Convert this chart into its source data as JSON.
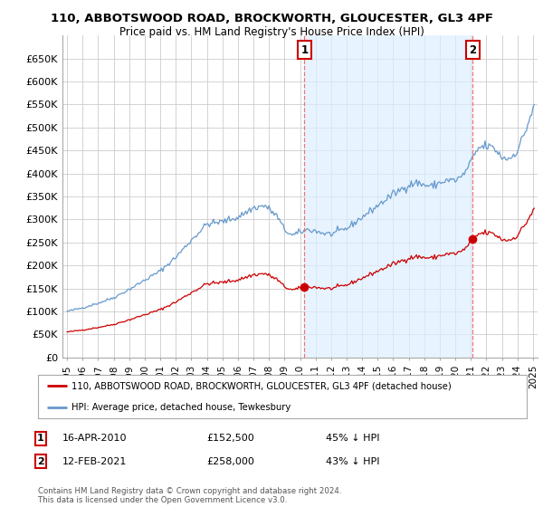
{
  "title": "110, ABBOTSWOOD ROAD, BROCKWORTH, GLOUCESTER, GL3 4PF",
  "subtitle": "Price paid vs. HM Land Registry's House Price Index (HPI)",
  "legend_label_red": "110, ABBOTSWOOD ROAD, BROCKWORTH, GLOUCESTER, GL3 4PF (detached house)",
  "legend_label_blue": "HPI: Average price, detached house, Tewkesbury",
  "annotation1_date": "16-APR-2010",
  "annotation1_price": "£152,500",
  "annotation1_pct": "45% ↓ HPI",
  "annotation2_date": "12-FEB-2021",
  "annotation2_price": "£258,000",
  "annotation2_pct": "43% ↓ HPI",
  "footer": "Contains HM Land Registry data © Crown copyright and database right 2024.\nThis data is licensed under the Open Government Licence v3.0.",
  "red_color": "#cc0000",
  "blue_color": "#6699cc",
  "blue_fill_color": "#ddeeff",
  "annotation_vline_color": "#ee6666",
  "grid_color": "#cccccc",
  "background_color": "#ffffff",
  "ylim": [
    0,
    700000
  ],
  "yticks": [
    0,
    50000,
    100000,
    150000,
    200000,
    250000,
    300000,
    350000,
    400000,
    450000,
    500000,
    550000,
    600000,
    650000
  ],
  "ytick_labels": [
    "£0",
    "£50K",
    "£100K",
    "£150K",
    "£200K",
    "£250K",
    "£300K",
    "£350K",
    "£400K",
    "£450K",
    "£500K",
    "£550K",
    "£600K",
    "£650K"
  ],
  "sale1_year": 2010.29,
  "sale1_price": 152500,
  "sale2_year": 2021.12,
  "sale2_price": 258000,
  "xtick_years": [
    1995,
    1996,
    1997,
    1998,
    1999,
    2000,
    2001,
    2002,
    2003,
    2004,
    2005,
    2006,
    2007,
    2008,
    2009,
    2010,
    2011,
    2012,
    2013,
    2014,
    2015,
    2016,
    2017,
    2018,
    2019,
    2020,
    2021,
    2022,
    2023,
    2024,
    2025
  ]
}
